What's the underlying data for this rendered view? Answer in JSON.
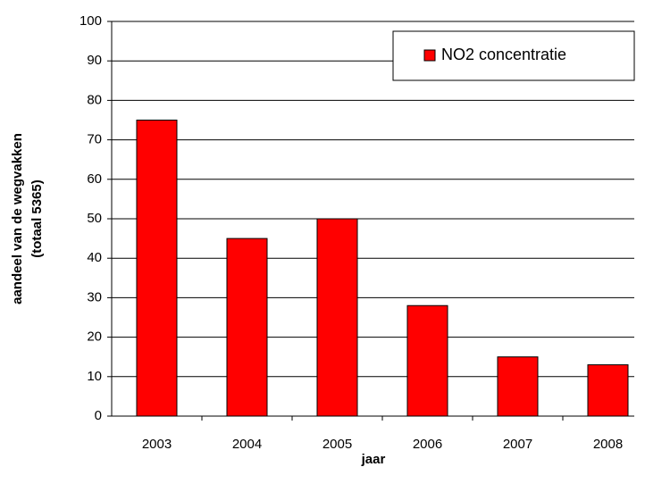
{
  "chart_data": {
    "type": "bar",
    "categories": [
      "2003",
      "2004",
      "2005",
      "2006",
      "2007",
      "2008"
    ],
    "series": [
      {
        "name": "NO2 concentratie",
        "color": "#ff0000",
        "values": [
          75,
          45,
          50,
          28,
          15,
          13
        ]
      }
    ],
    "ylim": [
      0,
      100
    ],
    "yticks": [
      0,
      10,
      20,
      30,
      40,
      50,
      60,
      70,
      80,
      90,
      100
    ],
    "grid": true,
    "x_label": "jaar",
    "y_label": [
      "aandeel van de wegvakken",
      "(totaal 5365)"
    ],
    "legend": "top-right"
  }
}
